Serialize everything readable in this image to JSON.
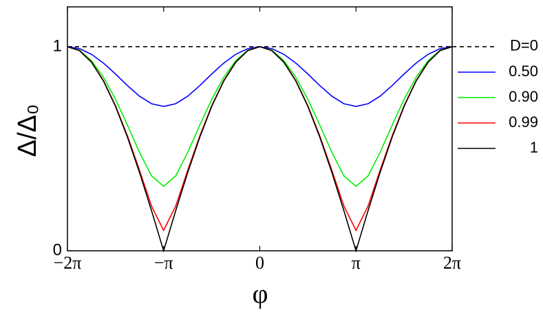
{
  "chart_data": {
    "type": "line",
    "x_label": "φ",
    "y_label": "Δ/Δ₀",
    "xlim": [
      -6.283,
      6.283
    ],
    "ylim": [
      0,
      1.195
    ],
    "xticks": [
      {
        "value": -6.283,
        "label": "−2π"
      },
      {
        "value": -3.142,
        "label": "−π"
      },
      0,
      {
        "value": 3.142,
        "label": "π"
      },
      {
        "value": 6.283,
        "label": "2π"
      }
    ],
    "yticks": [
      0,
      1
    ],
    "x": [
      -6.283,
      -5.89,
      -5.498,
      -5.105,
      -4.712,
      -4.32,
      -3.927,
      -3.534,
      -3.142,
      -2.749,
      -2.356,
      -1.963,
      -1.571,
      -1.178,
      -0.785,
      -0.393,
      0,
      0.393,
      0.785,
      1.178,
      1.571,
      1.963,
      2.356,
      2.749,
      3.142,
      3.534,
      3.927,
      4.32,
      4.712,
      5.105,
      5.498,
      5.89,
      6.283
    ],
    "series": [
      {
        "name": "D=0",
        "color": "#000000",
        "line_style": "dashed",
        "values": [
          1,
          1,
          1,
          1,
          1,
          1,
          1,
          1,
          1,
          1,
          1,
          1,
          1,
          1,
          1,
          1,
          1,
          1,
          1,
          1,
          1,
          1,
          1,
          1,
          1,
          1,
          1,
          1,
          1,
          1,
          1,
          1,
          1
        ]
      },
      {
        "name": "0.50",
        "color": "#0000ff",
        "line_style": "solid",
        "values": [
          1,
          0.9904,
          0.9627,
          0.9196,
          0.866,
          0.8089,
          0.7571,
          0.7204,
          0.7071,
          0.7204,
          0.7571,
          0.8089,
          0.866,
          0.9196,
          0.9627,
          0.9904,
          1,
          0.9904,
          0.9627,
          0.9196,
          0.866,
          0.8089,
          0.7571,
          0.7204,
          0.7071,
          0.7204,
          0.7571,
          0.8089,
          0.866,
          0.9196,
          0.9627,
          0.9904,
          1
        ]
      },
      {
        "name": "0.90",
        "color": "#00ee00",
        "line_style": "solid",
        "values": [
          1,
          0.9827,
          0.9318,
          0.8498,
          0.7416,
          0.6146,
          0.4815,
          0.3664,
          0.3162,
          0.3664,
          0.4815,
          0.6146,
          0.7416,
          0.8498,
          0.9318,
          0.9827,
          1,
          0.9827,
          0.9318,
          0.8498,
          0.7416,
          0.6146,
          0.4815,
          0.3664,
          0.3162,
          0.3664,
          0.4815,
          0.6146,
          0.7416,
          0.8498,
          0.9318,
          0.9827,
          1
        ]
      },
      {
        "name": "0.99",
        "color": "#ff0000",
        "line_style": "solid",
        "values": [
          1,
          0.981,
          0.9247,
          0.8333,
          0.7106,
          0.5618,
          0.3937,
          0.2184,
          0.1,
          0.2184,
          0.3937,
          0.5618,
          0.7106,
          0.8333,
          0.9247,
          0.981,
          1,
          0.981,
          0.9247,
          0.8333,
          0.7106,
          0.5618,
          0.3937,
          0.2184,
          0.1,
          0.2184,
          0.3937,
          0.5618,
          0.7106,
          0.8333,
          0.9247,
          0.981,
          1
        ]
      },
      {
        "name": "1",
        "color": "#000000",
        "line_style": "solid",
        "values": [
          1,
          0.9808,
          0.9239,
          0.8315,
          0.7071,
          0.5556,
          0.3827,
          0.1951,
          0,
          0.1951,
          0.3827,
          0.5556,
          0.7071,
          0.8315,
          0.9239,
          0.9808,
          1,
          0.9808,
          0.9239,
          0.8315,
          0.7071,
          0.5556,
          0.3827,
          0.1951,
          0,
          0.1951,
          0.3827,
          0.5556,
          0.7071,
          0.8315,
          0.9239,
          0.9808,
          1
        ]
      }
    ]
  }
}
